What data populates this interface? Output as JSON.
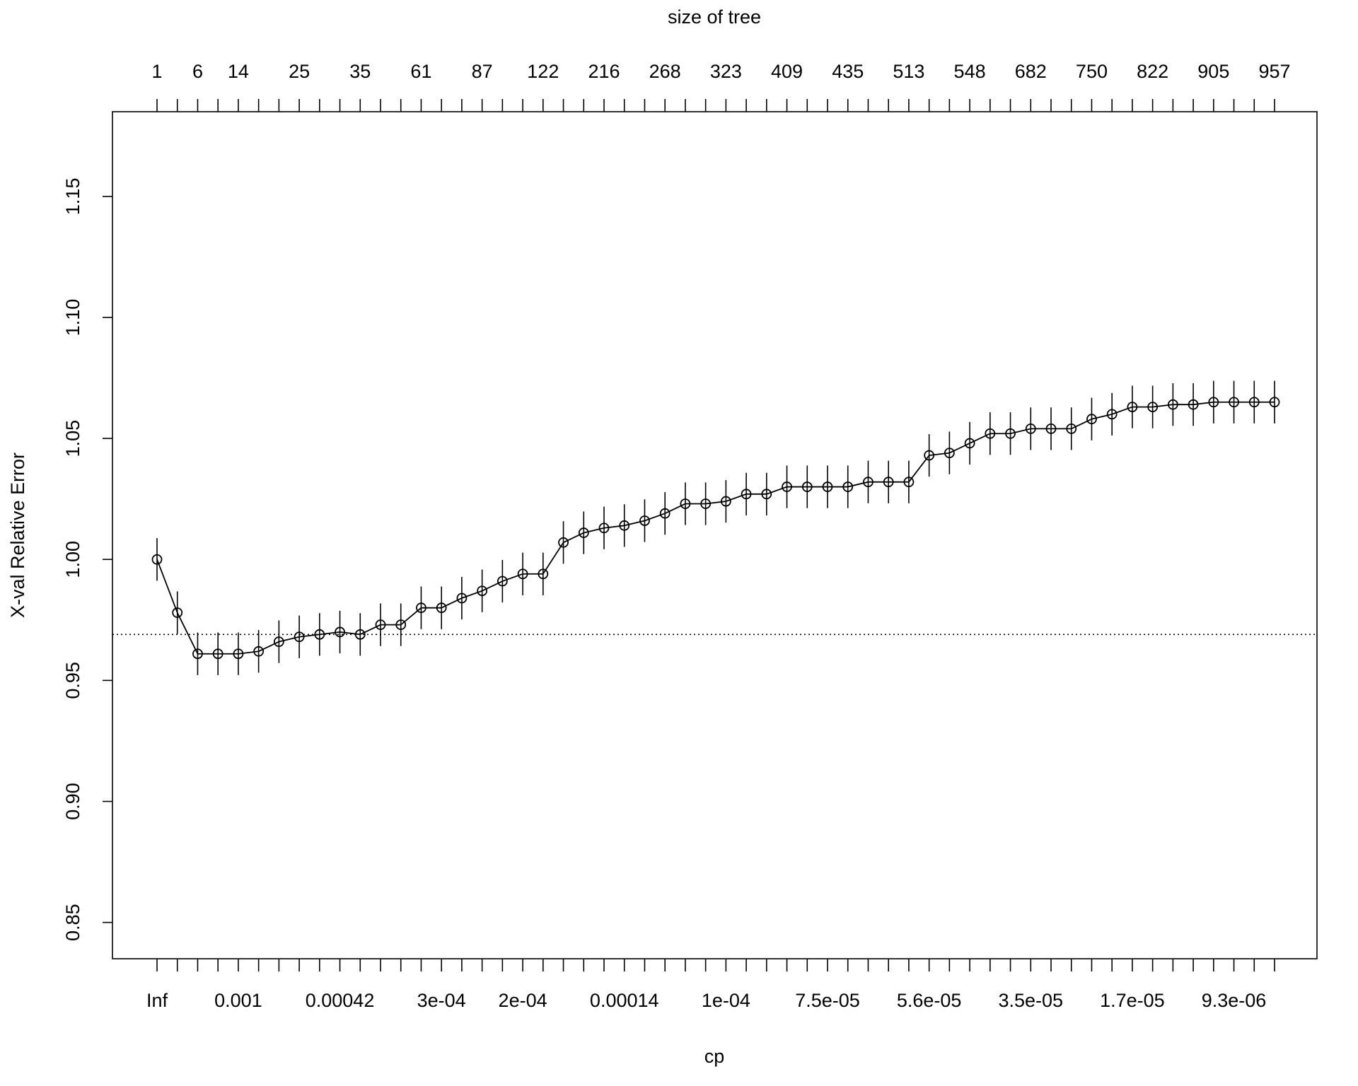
{
  "chart_data": {
    "type": "line",
    "title": "",
    "xlabel": "cp",
    "ylabel": "X-val Relative Error",
    "top_axis_label": "size of tree",
    "ylim": [
      0.835,
      1.185
    ],
    "y_ticks": [
      "0.85",
      "0.90",
      "0.95",
      "1.00",
      "1.05",
      "1.10",
      "1.15"
    ],
    "top_tick_labels": [
      "1",
      "6",
      "14",
      "25",
      "35",
      "61",
      "87",
      "122",
      "216",
      "268",
      "323",
      "409",
      "435",
      "513",
      "548",
      "682",
      "750",
      "822",
      "905",
      "957"
    ],
    "bottom_tick_labels": [
      "Inf",
      "0.001",
      "0.00042",
      "3e-04",
      "2e-04",
      "0.00014",
      "1e-04",
      "7.5e-05",
      "5.6e-05",
      "3.5e-05",
      "1.7e-05",
      "9.3e-06"
    ],
    "reference_line": 0.969,
    "error_bar_halfwidth": 0.0088,
    "values": [
      1.0,
      0.978,
      0.961,
      0.961,
      0.961,
      0.962,
      0.966,
      0.968,
      0.969,
      0.97,
      0.969,
      0.973,
      0.973,
      0.98,
      0.98,
      0.984,
      0.987,
      0.991,
      0.994,
      0.994,
      1.007,
      1.011,
      1.013,
      1.014,
      1.016,
      1.019,
      1.023,
      1.023,
      1.024,
      1.027,
      1.027,
      1.03,
      1.03,
      1.03,
      1.03,
      1.032,
      1.032,
      1.032,
      1.043,
      1.044,
      1.048,
      1.052,
      1.052,
      1.054,
      1.054,
      1.054,
      1.058,
      1.06,
      1.063,
      1.063,
      1.064,
      1.064,
      1.065,
      1.065,
      1.065,
      1.065
    ]
  }
}
